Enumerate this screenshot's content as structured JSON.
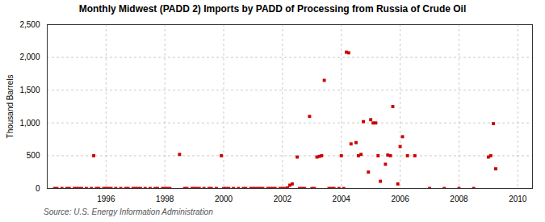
{
  "chart_data": {
    "type": "scatter",
    "title": "Monthly Midwest (PADD 2) Imports by PADD of Processing from Russia of Crude Oil",
    "ylabel": "Thousand Barrels",
    "source": "Source: U.S. Energy Information Administration",
    "color": "#cc0000",
    "marker": "square",
    "grid": true,
    "xlim": [
      1994.0,
      2010.5
    ],
    "ylim": [
      0,
      2500
    ],
    "xticks": [
      1996,
      1998,
      2000,
      2002,
      2004,
      2006,
      2008,
      2010
    ],
    "yticks": [
      0,
      500,
      {
        "value": 1000,
        "label": "1,000"
      },
      {
        "value": 1500,
        "label": "1,500"
      },
      {
        "value": 2000,
        "label": "2,000"
      },
      {
        "value": 2500,
        "label": "2,500"
      }
    ],
    "x": [
      1994.25,
      1994.33,
      1994.5,
      1994.67,
      1994.75,
      1994.92,
      1995.0,
      1995.08,
      1995.17,
      1995.33,
      1995.5,
      1995.58,
      1995.67,
      1995.75,
      1995.92,
      1996.0,
      1996.08,
      1996.17,
      1996.33,
      1996.5,
      1996.67,
      1996.75,
      1996.92,
      1997.0,
      1997.08,
      1997.17,
      1997.33,
      1997.5,
      1997.67,
      1997.75,
      1997.92,
      1998.0,
      1998.08,
      1998.17,
      1998.5,
      1998.67,
      1998.75,
      1998.92,
      1999.0,
      1999.08,
      1999.17,
      1999.33,
      1999.5,
      1999.58,
      1999.75,
      1999.92,
      2000.0,
      2000.08,
      2000.17,
      2000.33,
      2000.5,
      2000.67,
      2000.75,
      2000.92,
      2001.0,
      2001.08,
      2001.17,
      2001.25,
      2001.33,
      2001.5,
      2001.58,
      2001.67,
      2001.75,
      2001.92,
      2002.0,
      2002.08,
      2002.17,
      2002.25,
      2002.33,
      2002.5,
      2002.58,
      2002.67,
      2002.75,
      2002.92,
      2003.0,
      2003.08,
      2003.17,
      2003.25,
      2003.33,
      2003.42,
      2003.58,
      2003.67,
      2003.75,
      2003.92,
      2004.0,
      2004.08,
      2004.17,
      2004.25,
      2004.33,
      2004.5,
      2004.58,
      2004.67,
      2004.75,
      2004.92,
      2005.0,
      2005.08,
      2005.17,
      2005.25,
      2005.33,
      2005.5,
      2005.58,
      2005.67,
      2005.75,
      2005.92,
      2006.0,
      2006.08,
      2006.25,
      2006.5,
      2007.0,
      2007.5,
      2008.0,
      2008.5,
      2009.0,
      2009.08,
      2009.17,
      2009.25
    ],
    "values": [
      0,
      0,
      0,
      0,
      0,
      0,
      0,
      0,
      0,
      0,
      0,
      500,
      0,
      0,
      0,
      0,
      0,
      0,
      0,
      0,
      0,
      0,
      0,
      0,
      0,
      0,
      0,
      0,
      0,
      0,
      0,
      0,
      0,
      0,
      520,
      0,
      0,
      0,
      0,
      0,
      0,
      0,
      0,
      0,
      0,
      500,
      0,
      0,
      0,
      0,
      0,
      0,
      0,
      0,
      0,
      0,
      0,
      0,
      0,
      0,
      0,
      0,
      0,
      0,
      0,
      0,
      10,
      50,
      70,
      480,
      0,
      0,
      0,
      1100,
      0,
      0,
      480,
      490,
      500,
      1650,
      0,
      0,
      0,
      0,
      500,
      0,
      2080,
      2070,
      680,
      700,
      500,
      520,
      1020,
      250,
      1050,
      1000,
      1000,
      500,
      110,
      370,
      510,
      500,
      1250,
      70,
      640,
      790,
      500,
      500,
      0,
      0,
      0,
      0,
      480,
      500,
      990,
      300
    ]
  }
}
